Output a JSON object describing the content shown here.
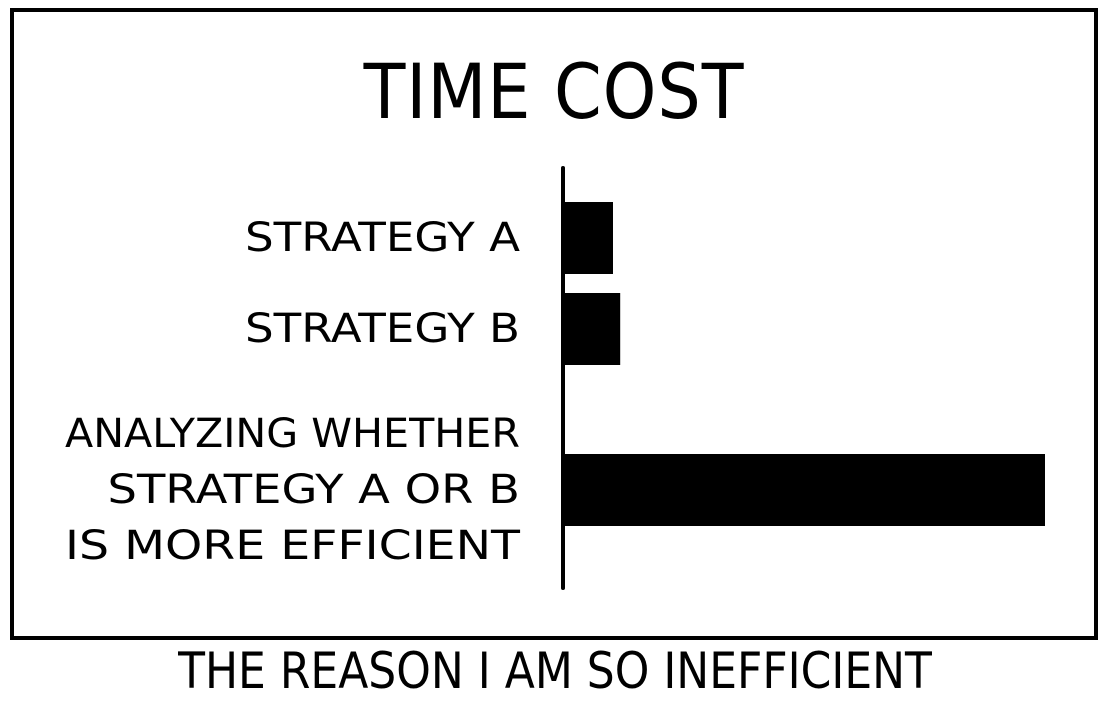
{
  "chart_data": {
    "type": "bar",
    "orientation": "horizontal",
    "title": "TIME COST",
    "categories": [
      [
        "STRATEGY A"
      ],
      [
        "STRATEGY B"
      ],
      [
        "ANALYZING WHETHER",
        "STRATEGY A OR B",
        "IS MORE EFFICIENT"
      ]
    ],
    "values": [
      1.0,
      1.15,
      10.0
    ],
    "xlabel": "",
    "ylabel": "",
    "xlim": [
      0,
      10.5
    ],
    "grid": false,
    "bar_color": "#000000"
  },
  "caption": "THE REASON I AM SO INEFFICIENT"
}
